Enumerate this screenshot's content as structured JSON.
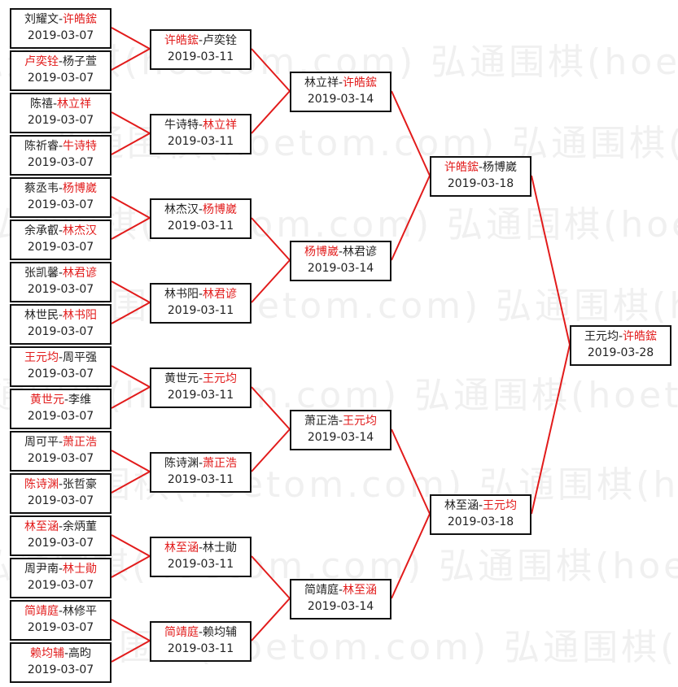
{
  "watermark": "弘通围棋(hoetom.com)",
  "colors": {
    "winner": "#e21b1b",
    "connector": "#e21b1b",
    "border": "#111111"
  },
  "rounds": [
    [
      {
        "p1": "刘耀文",
        "p2": "许皓鋐",
        "winner": 2,
        "date": "2019-03-07"
      },
      {
        "p1": "卢奕铨",
        "p2": "杨子萱",
        "winner": 1,
        "date": "2019-03-07"
      },
      {
        "p1": "陈禧",
        "p2": "林立祥",
        "winner": 2,
        "date": "2019-03-07"
      },
      {
        "p1": "陈祈睿",
        "p2": "牛诗特",
        "winner": 2,
        "date": "2019-03-07"
      },
      {
        "p1": "蔡丞韦",
        "p2": "杨博崴",
        "winner": 2,
        "date": "2019-03-07"
      },
      {
        "p1": "余承叡",
        "p2": "林杰汉",
        "winner": 2,
        "date": "2019-03-07"
      },
      {
        "p1": "张凯馨",
        "p2": "林君谚",
        "winner": 2,
        "date": "2019-03-07"
      },
      {
        "p1": "林世民",
        "p2": "林书阳",
        "winner": 2,
        "date": "2019-03-07"
      },
      {
        "p1": "王元均",
        "p2": "周平强",
        "winner": 1,
        "date": "2019-03-07"
      },
      {
        "p1": "黄世元",
        "p2": "李维",
        "winner": 1,
        "date": "2019-03-07"
      },
      {
        "p1": "周可平",
        "p2": "萧正浩",
        "winner": 2,
        "date": "2019-03-07"
      },
      {
        "p1": "陈诗渊",
        "p2": "张哲豪",
        "winner": 1,
        "date": "2019-03-07"
      },
      {
        "p1": "林至涵",
        "p2": "余炳菫",
        "winner": 1,
        "date": "2019-03-07"
      },
      {
        "p1": "周尹南",
        "p2": "林士勛",
        "winner": 2,
        "date": "2019-03-07"
      },
      {
        "p1": "简靖庭",
        "p2": "林修平",
        "winner": 1,
        "date": "2019-03-07"
      },
      {
        "p1": "赖均辅",
        "p2": "高昀",
        "winner": 1,
        "date": "2019-03-07"
      }
    ],
    [
      {
        "p1": "许皓鋐",
        "p2": "卢奕铨",
        "winner": 1,
        "date": "2019-03-11"
      },
      {
        "p1": "牛诗特",
        "p2": "林立祥",
        "winner": 2,
        "date": "2019-03-11"
      },
      {
        "p1": "林杰汉",
        "p2": "杨博崴",
        "winner": 2,
        "date": "2019-03-11"
      },
      {
        "p1": "林书阳",
        "p2": "林君谚",
        "winner": 2,
        "date": "2019-03-11"
      },
      {
        "p1": "黄世元",
        "p2": "王元均",
        "winner": 2,
        "date": "2019-03-11"
      },
      {
        "p1": "陈诗渊",
        "p2": "萧正浩",
        "winner": 2,
        "date": "2019-03-11"
      },
      {
        "p1": "林至涵",
        "p2": "林士勛",
        "winner": 1,
        "date": "2019-03-11"
      },
      {
        "p1": "简靖庭",
        "p2": "赖均辅",
        "winner": 1,
        "date": "2019-03-11"
      }
    ],
    [
      {
        "p1": "林立祥",
        "p2": "许皓鋐",
        "winner": 2,
        "date": "2019-03-14"
      },
      {
        "p1": "杨博崴",
        "p2": "林君谚",
        "winner": 1,
        "date": "2019-03-14"
      },
      {
        "p1": "萧正浩",
        "p2": "王元均",
        "winner": 2,
        "date": "2019-03-14"
      },
      {
        "p1": "简靖庭",
        "p2": "林至涵",
        "winner": 2,
        "date": "2019-03-14"
      }
    ],
    [
      {
        "p1": "许皓鋐",
        "p2": "杨博崴",
        "winner": 1,
        "date": "2019-03-18"
      },
      {
        "p1": "林至涵",
        "p2": "王元均",
        "winner": 2,
        "date": "2019-03-18"
      }
    ],
    [
      {
        "p1": "王元均",
        "p2": "许皓鋐",
        "winner": 2,
        "date": "2019-03-28"
      }
    ]
  ]
}
